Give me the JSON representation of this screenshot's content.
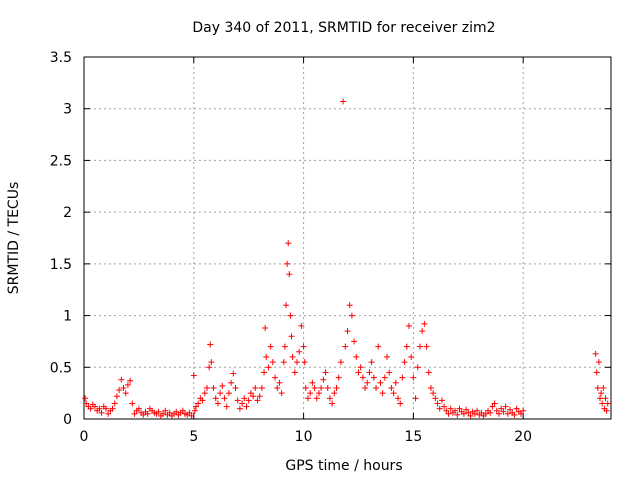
{
  "chart_data": {
    "type": "scatter",
    "title": "Day 340 of 2011, SRMTID for receiver zim2",
    "xlabel": "GPS time / hours",
    "ylabel": "SRMTID / TECUs",
    "xlim": [
      0,
      24
    ],
    "ylim": [
      0,
      3.5
    ],
    "xticks": [
      0,
      5,
      10,
      15,
      20
    ],
    "yticks": [
      0,
      0.5,
      1,
      1.5,
      2,
      2.5,
      3,
      3.5
    ],
    "xtick_labels": [
      "0",
      "5",
      "10",
      "15",
      "20"
    ],
    "ytick_labels": [
      "0",
      "0.5",
      "1",
      "1.5",
      "2",
      "2.5",
      "3",
      "3.5"
    ],
    "grid": true,
    "marker": "+",
    "series": [
      {
        "name": "zim2",
        "color": "#ff0000",
        "points": [
          [
            0.05,
            0.2
          ],
          [
            0.1,
            0.15
          ],
          [
            0.2,
            0.12
          ],
          [
            0.3,
            0.1
          ],
          [
            0.4,
            0.14
          ],
          [
            0.5,
            0.12
          ],
          [
            0.6,
            0.08
          ],
          [
            0.7,
            0.1
          ],
          [
            0.8,
            0.06
          ],
          [
            0.9,
            0.12
          ],
          [
            1.0,
            0.1
          ],
          [
            1.1,
            0.05
          ],
          [
            1.2,
            0.08
          ],
          [
            1.3,
            0.1
          ],
          [
            1.4,
            0.15
          ],
          [
            1.5,
            0.22
          ],
          [
            1.6,
            0.28
          ],
          [
            1.7,
            0.38
          ],
          [
            1.8,
            0.3
          ],
          [
            1.9,
            0.25
          ],
          [
            2.0,
            0.33
          ],
          [
            2.1,
            0.37
          ],
          [
            2.2,
            0.15
          ],
          [
            2.3,
            0.05
          ],
          [
            2.4,
            0.08
          ],
          [
            2.5,
            0.1
          ],
          [
            2.6,
            0.06
          ],
          [
            2.7,
            0.04
          ],
          [
            2.8,
            0.07
          ],
          [
            2.9,
            0.05
          ],
          [
            3.0,
            0.1
          ],
          [
            3.1,
            0.08
          ],
          [
            3.2,
            0.06
          ],
          [
            3.3,
            0.05
          ],
          [
            3.4,
            0.07
          ],
          [
            3.5,
            0.03
          ],
          [
            3.6,
            0.05
          ],
          [
            3.7,
            0.08
          ],
          [
            3.8,
            0.04
          ],
          [
            3.9,
            0.06
          ],
          [
            4.0,
            0.03
          ],
          [
            4.1,
            0.05
          ],
          [
            4.2,
            0.07
          ],
          [
            4.3,
            0.04
          ],
          [
            4.4,
            0.06
          ],
          [
            4.5,
            0.08
          ],
          [
            4.6,
            0.05
          ],
          [
            4.7,
            0.04
          ],
          [
            4.8,
            0.06
          ],
          [
            4.9,
            0.03
          ],
          [
            5.0,
            0.42
          ],
          [
            5.05,
            0.08
          ],
          [
            5.1,
            0.12
          ],
          [
            5.2,
            0.15
          ],
          [
            5.3,
            0.2
          ],
          [
            5.4,
            0.18
          ],
          [
            5.5,
            0.25
          ],
          [
            5.6,
            0.3
          ],
          [
            5.7,
            0.5
          ],
          [
            5.75,
            0.72
          ],
          [
            5.8,
            0.55
          ],
          [
            5.9,
            0.3
          ],
          [
            6.0,
            0.2
          ],
          [
            6.1,
            0.15
          ],
          [
            6.2,
            0.25
          ],
          [
            6.3,
            0.32
          ],
          [
            6.4,
            0.2
          ],
          [
            6.5,
            0.12
          ],
          [
            6.6,
            0.25
          ],
          [
            6.7,
            0.35
          ],
          [
            6.8,
            0.44
          ],
          [
            6.9,
            0.3
          ],
          [
            7.0,
            0.18
          ],
          [
            7.1,
            0.1
          ],
          [
            7.2,
            0.15
          ],
          [
            7.3,
            0.2
          ],
          [
            7.4,
            0.12
          ],
          [
            7.5,
            0.18
          ],
          [
            7.6,
            0.25
          ],
          [
            7.7,
            0.22
          ],
          [
            7.8,
            0.3
          ],
          [
            7.9,
            0.18
          ],
          [
            8.0,
            0.22
          ],
          [
            8.1,
            0.3
          ],
          [
            8.2,
            0.45
          ],
          [
            8.25,
            0.88
          ],
          [
            8.3,
            0.6
          ],
          [
            8.4,
            0.5
          ],
          [
            8.5,
            0.7
          ],
          [
            8.6,
            0.55
          ],
          [
            8.7,
            0.4
          ],
          [
            8.8,
            0.3
          ],
          [
            8.9,
            0.35
          ],
          [
            9.0,
            0.25
          ],
          [
            9.1,
            0.55
          ],
          [
            9.15,
            0.7
          ],
          [
            9.2,
            1.1
          ],
          [
            9.25,
            1.5
          ],
          [
            9.3,
            1.7
          ],
          [
            9.35,
            1.4
          ],
          [
            9.4,
            1.0
          ],
          [
            9.45,
            0.8
          ],
          [
            9.5,
            0.6
          ],
          [
            9.6,
            0.45
          ],
          [
            9.7,
            0.55
          ],
          [
            9.8,
            0.65
          ],
          [
            9.9,
            0.9
          ],
          [
            10.0,
            0.7
          ],
          [
            10.05,
            0.55
          ],
          [
            10.1,
            0.3
          ],
          [
            10.2,
            0.2
          ],
          [
            10.3,
            0.25
          ],
          [
            10.4,
            0.35
          ],
          [
            10.5,
            0.3
          ],
          [
            10.6,
            0.2
          ],
          [
            10.7,
            0.25
          ],
          [
            10.8,
            0.3
          ],
          [
            10.9,
            0.38
          ],
          [
            11.0,
            0.45
          ],
          [
            11.1,
            0.3
          ],
          [
            11.2,
            0.2
          ],
          [
            11.3,
            0.15
          ],
          [
            11.4,
            0.25
          ],
          [
            11.5,
            0.3
          ],
          [
            11.6,
            0.4
          ],
          [
            11.7,
            0.55
          ],
          [
            11.8,
            3.07
          ],
          [
            11.9,
            0.7
          ],
          [
            12.0,
            0.85
          ],
          [
            12.1,
            1.1
          ],
          [
            12.2,
            1.0
          ],
          [
            12.3,
            0.75
          ],
          [
            12.4,
            0.6
          ],
          [
            12.5,
            0.45
          ],
          [
            12.6,
            0.5
          ],
          [
            12.7,
            0.4
          ],
          [
            12.8,
            0.3
          ],
          [
            12.9,
            0.35
          ],
          [
            13.0,
            0.45
          ],
          [
            13.1,
            0.55
          ],
          [
            13.2,
            0.4
          ],
          [
            13.3,
            0.3
          ],
          [
            13.4,
            0.7
          ],
          [
            13.5,
            0.35
          ],
          [
            13.6,
            0.25
          ],
          [
            13.7,
            0.4
          ],
          [
            13.8,
            0.6
          ],
          [
            13.9,
            0.45
          ],
          [
            14.0,
            0.3
          ],
          [
            14.1,
            0.25
          ],
          [
            14.2,
            0.35
          ],
          [
            14.3,
            0.2
          ],
          [
            14.4,
            0.15
          ],
          [
            14.5,
            0.4
          ],
          [
            14.6,
            0.55
          ],
          [
            14.7,
            0.7
          ],
          [
            14.8,
            0.9
          ],
          [
            14.9,
            0.6
          ],
          [
            15.0,
            0.4
          ],
          [
            15.1,
            0.2
          ],
          [
            15.2,
            0.5
          ],
          [
            15.3,
            0.7
          ],
          [
            15.4,
            0.85
          ],
          [
            15.5,
            0.92
          ],
          [
            15.6,
            0.7
          ],
          [
            15.7,
            0.45
          ],
          [
            15.8,
            0.3
          ],
          [
            15.9,
            0.25
          ],
          [
            16.0,
            0.2
          ],
          [
            16.1,
            0.15
          ],
          [
            16.2,
            0.1
          ],
          [
            16.3,
            0.18
          ],
          [
            16.4,
            0.12
          ],
          [
            16.5,
            0.08
          ],
          [
            16.6,
            0.05
          ],
          [
            16.7,
            0.1
          ],
          [
            16.8,
            0.06
          ],
          [
            16.9,
            0.08
          ],
          [
            17.0,
            0.04
          ],
          [
            17.1,
            0.1
          ],
          [
            17.2,
            0.07
          ],
          [
            17.3,
            0.05
          ],
          [
            17.4,
            0.09
          ],
          [
            17.5,
            0.06
          ],
          [
            17.6,
            0.03
          ],
          [
            17.7,
            0.07
          ],
          [
            17.8,
            0.05
          ],
          [
            17.9,
            0.08
          ],
          [
            18.0,
            0.04
          ],
          [
            18.1,
            0.06
          ],
          [
            18.2,
            0.03
          ],
          [
            18.3,
            0.05
          ],
          [
            18.4,
            0.08
          ],
          [
            18.5,
            0.06
          ],
          [
            18.6,
            0.12
          ],
          [
            18.7,
            0.15
          ],
          [
            18.8,
            0.08
          ],
          [
            18.9,
            0.05
          ],
          [
            19.0,
            0.1
          ],
          [
            19.1,
            0.07
          ],
          [
            19.2,
            0.12
          ],
          [
            19.3,
            0.05
          ],
          [
            19.4,
            0.09
          ],
          [
            19.5,
            0.06
          ],
          [
            19.6,
            0.04
          ],
          [
            19.7,
            0.1
          ],
          [
            19.8,
            0.07
          ],
          [
            19.9,
            0.05
          ],
          [
            20.0,
            0.08
          ],
          [
            23.3,
            0.63
          ],
          [
            23.35,
            0.45
          ],
          [
            23.4,
            0.3
          ],
          [
            23.45,
            0.55
          ],
          [
            23.5,
            0.2
          ],
          [
            23.55,
            0.25
          ],
          [
            23.6,
            0.15
          ],
          [
            23.65,
            0.3
          ],
          [
            23.7,
            0.1
          ],
          [
            23.75,
            0.2
          ],
          [
            23.8,
            0.08
          ],
          [
            23.85,
            0.15
          ]
        ]
      }
    ]
  }
}
